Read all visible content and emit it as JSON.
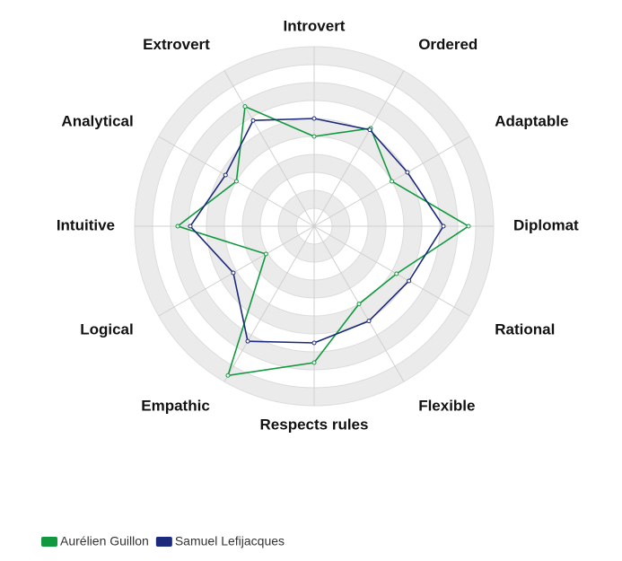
{
  "chart_data": {
    "type": "radar",
    "categories": [
      "Introvert",
      "Ordered",
      "Adaptable",
      "Diplomat",
      "Rational",
      "Flexible",
      "Respects rules",
      "Empathic",
      "Logical",
      "Intuitive",
      "Analytical",
      "Extrovert"
    ],
    "series": [
      {
        "name": "Aurélien Guillon",
        "color": "#12993f",
        "values": [
          5,
          6.3,
          5,
          8.6,
          5.3,
          5,
          7.6,
          9.6,
          3.1,
          7.6,
          5,
          7.7
        ]
      },
      {
        "name": "Samuel Lefijacques",
        "color": "#1c2a7c",
        "values": [
          6,
          6.2,
          6,
          7.2,
          6.1,
          6.1,
          6.5,
          7.4,
          5.2,
          6.9,
          5.7,
          6.8
        ]
      }
    ],
    "rlim": [
      0,
      10
    ],
    "rticks": [
      1,
      2,
      3,
      4,
      5,
      6,
      7,
      8,
      9,
      10
    ],
    "grid": true,
    "legend": "bottom-left"
  }
}
